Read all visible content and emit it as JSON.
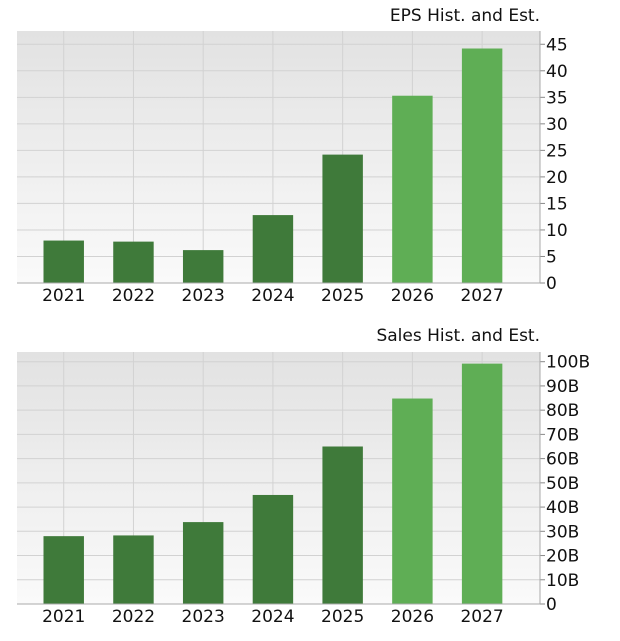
{
  "charts": [
    {
      "title": "EPS Hist. and Est."
    },
    {
      "title": "Sales Hist. and Est."
    }
  ],
  "colors": {
    "historical": "#3f7a3a",
    "estimate": "#5fae55",
    "grid": "#d2d2d2",
    "background_top": "#e2e2e2",
    "background_bottom": "#fafafa"
  },
  "chart_data": [
    {
      "type": "bar",
      "title": "EPS Hist. and Est.",
      "categories": [
        "2021",
        "2022",
        "2023",
        "2024",
        "2025",
        "2026",
        "2027"
      ],
      "values": [
        8.0,
        7.8,
        6.2,
        12.8,
        24.2,
        35.3,
        44.2
      ],
      "estimate_from": "2026",
      "ylim": [
        0,
        47.5
      ],
      "yticks": [
        0,
        5,
        10,
        15,
        20,
        25,
        30,
        35,
        40,
        45
      ],
      "ytick_labels": [
        "0",
        "5",
        "10",
        "15",
        "20",
        "25",
        "30",
        "35",
        "40",
        "45"
      ],
      "grid": true
    },
    {
      "type": "bar",
      "title": "Sales Hist. and Est.",
      "categories": [
        "2021",
        "2022",
        "2023",
        "2024",
        "2025",
        "2026",
        "2027"
      ],
      "values": [
        28,
        28.3,
        33.8,
        45,
        65,
        84.8,
        99.2
      ],
      "estimate_from": "2026",
      "ylim": [
        0,
        104
      ],
      "yticks": [
        0,
        10,
        20,
        30,
        40,
        50,
        60,
        70,
        80,
        90,
        100
      ],
      "ytick_labels": [
        "0",
        "10B",
        "20B",
        "30B",
        "40B",
        "50B",
        "60B",
        "70B",
        "80B",
        "90B",
        "100B"
      ],
      "grid": true
    }
  ]
}
